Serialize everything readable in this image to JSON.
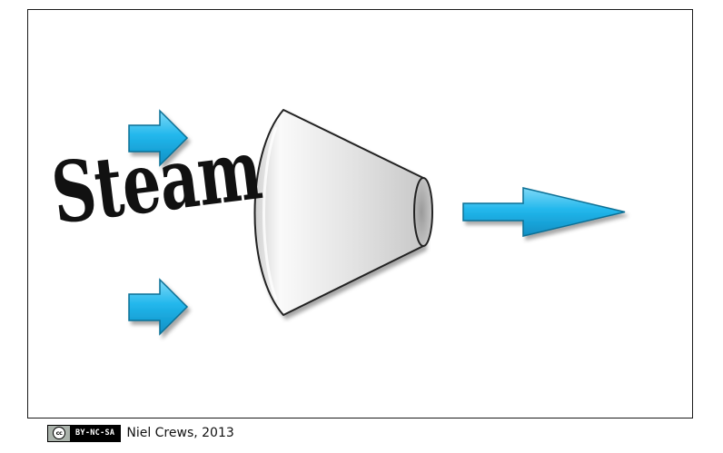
{
  "diagram": {
    "label": "Steam",
    "colors": {
      "arrow_fill": "#1fb4ea",
      "arrow_stroke": "#0b6f95",
      "nozzle_fill": "#e6e6e6",
      "nozzle_stroke": "#222222",
      "outlet_fill": "#b3b3b3"
    }
  },
  "footer": {
    "license_badge_logo": "cc",
    "license_badge_terms": "BY-NC-SA",
    "credit": "Niel Crews, 2013"
  }
}
